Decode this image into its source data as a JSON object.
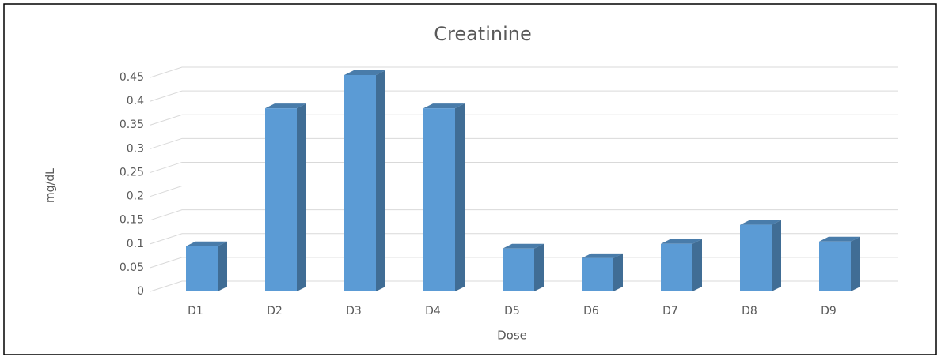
{
  "chart_data": {
    "type": "bar3d",
    "title": "Creatinine",
    "xlabel": "Dose",
    "ylabel": "mg/dL",
    "categories": [
      "D1",
      "D2",
      "D3",
      "D4",
      "D5",
      "D6",
      "D7",
      "D8",
      "D9"
    ],
    "values": [
      0.095,
      0.385,
      0.455,
      0.385,
      0.09,
      0.07,
      0.1,
      0.14,
      0.105
    ],
    "color": "#5b9bd5",
    "ylim": [
      0,
      0.45
    ],
    "yticks": [
      0,
      0.05,
      0.1,
      0.15,
      0.2,
      0.25,
      0.3,
      0.35,
      0.4,
      0.45
    ],
    "grid": true
  }
}
